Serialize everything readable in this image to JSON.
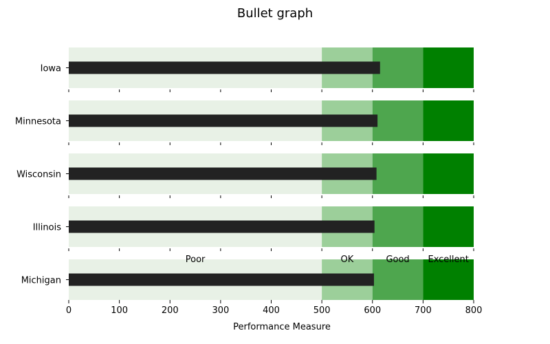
{
  "title": "Bullet graph",
  "colors": {
    "poor": "#e8f1e6",
    "ok": "#9ccf9a",
    "good": "#4ea64e",
    "excellent": "#008000",
    "bar": "#222222"
  },
  "chart_data": {
    "type": "bar",
    "orientation": "horizontal",
    "title": "Bullet graph",
    "xlabel": "Performance Measure",
    "ylabel": "",
    "xlim": [
      0,
      800
    ],
    "xticks": [
      "0",
      "100",
      "200",
      "300",
      "400",
      "500",
      "600",
      "700",
      "800"
    ],
    "categories": [
      "Iowa",
      "Minnesota",
      "Wisconsin",
      "Illinois",
      "Michigan"
    ],
    "values": [
      615,
      610,
      608,
      604,
      603
    ],
    "ranges": [
      {
        "label": "Poor",
        "from": 0,
        "to": 500
      },
      {
        "label": "OK",
        "from": 500,
        "to": 600
      },
      {
        "label": "Good",
        "from": 600,
        "to": 700
      },
      {
        "label": "Excellent",
        "from": 700,
        "to": 800
      }
    ],
    "range_labels_on": "Michigan",
    "grid": false
  }
}
